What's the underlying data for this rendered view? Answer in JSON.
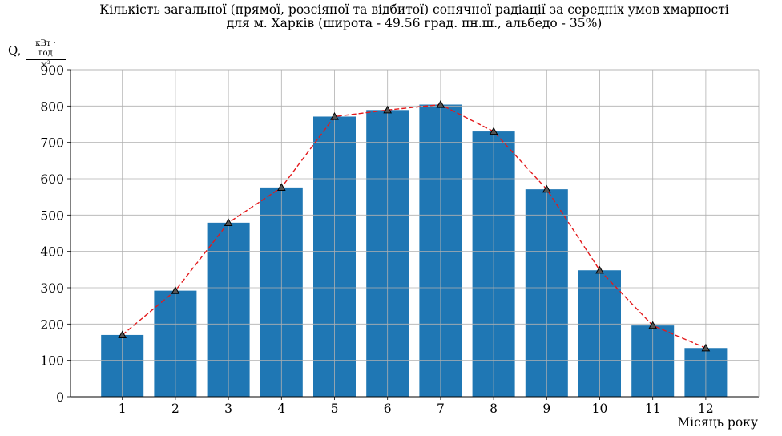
{
  "chart_data": {
    "type": "bar",
    "title_line1": "Кількість загальної (прямої, розсіяної та відбитої) сонячної радіації за середніх умов хмарності",
    "title_line2": "для м. Харків (широта - 49.56 град. пн.ш., альбедо - 35%)",
    "ylabel_symbol": "Q,",
    "ylabel_unit_num": "кВт · год",
    "ylabel_unit_den": "м²",
    "xlabel": "Місяць року",
    "categories": [
      "1",
      "2",
      "3",
      "4",
      "5",
      "6",
      "7",
      "8",
      "9",
      "10",
      "11",
      "12"
    ],
    "values": [
      170,
      292,
      479,
      576,
      771,
      789,
      804,
      730,
      571,
      348,
      196,
      134
    ],
    "line_values": [
      170,
      292,
      479,
      576,
      771,
      789,
      804,
      730,
      571,
      348,
      196,
      134
    ],
    "ylim": [
      0,
      900
    ],
    "yticks": [
      "0",
      "100",
      "200",
      "300",
      "400",
      "500",
      "600",
      "700",
      "800",
      "900"
    ],
    "grid": true,
    "bar_color": "#1f77b4",
    "line_color": "#e31a1c",
    "marker_color": "#555555"
  }
}
